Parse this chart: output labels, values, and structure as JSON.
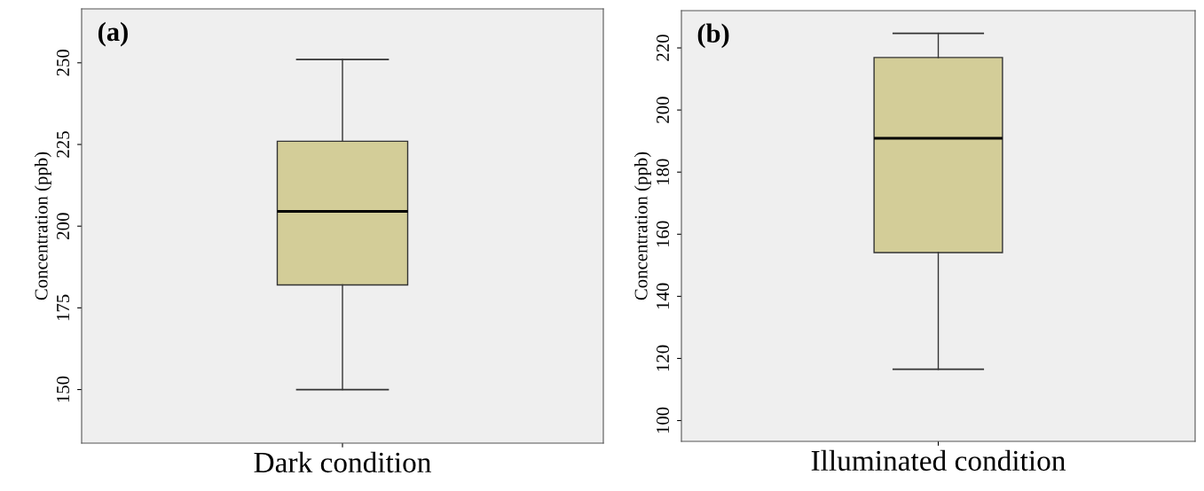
{
  "chart_data": [
    {
      "type": "box",
      "categories": [
        "Dark condition"
      ],
      "ylabel": "Concentration (ppb)",
      "annotations": [
        "(a)"
      ],
      "color": "#d3cd98",
      "ylim": [
        133.6,
        266.5
      ],
      "yticks": [
        150,
        175,
        200,
        225,
        250
      ],
      "grid": false,
      "legend": false,
      "boxes": [
        {
          "low": 150,
          "q1": 182,
          "median": 204.5,
          "q3": 226,
          "high": 251
        }
      ]
    },
    {
      "type": "box",
      "categories": [
        "Illuminated condition"
      ],
      "ylabel": "Concentration (ppb)",
      "annotations": [
        "(b)"
      ],
      "color": "#d3cd98",
      "ylim": [
        93.3,
        232
      ],
      "yticks": [
        100,
        120,
        140,
        160,
        180,
        200,
        220
      ],
      "grid": false,
      "legend": false,
      "boxes": [
        {
          "low": 116.5,
          "q1": 154.1,
          "median": 190.9,
          "q3": 216.9,
          "high": 224.7
        }
      ]
    }
  ]
}
